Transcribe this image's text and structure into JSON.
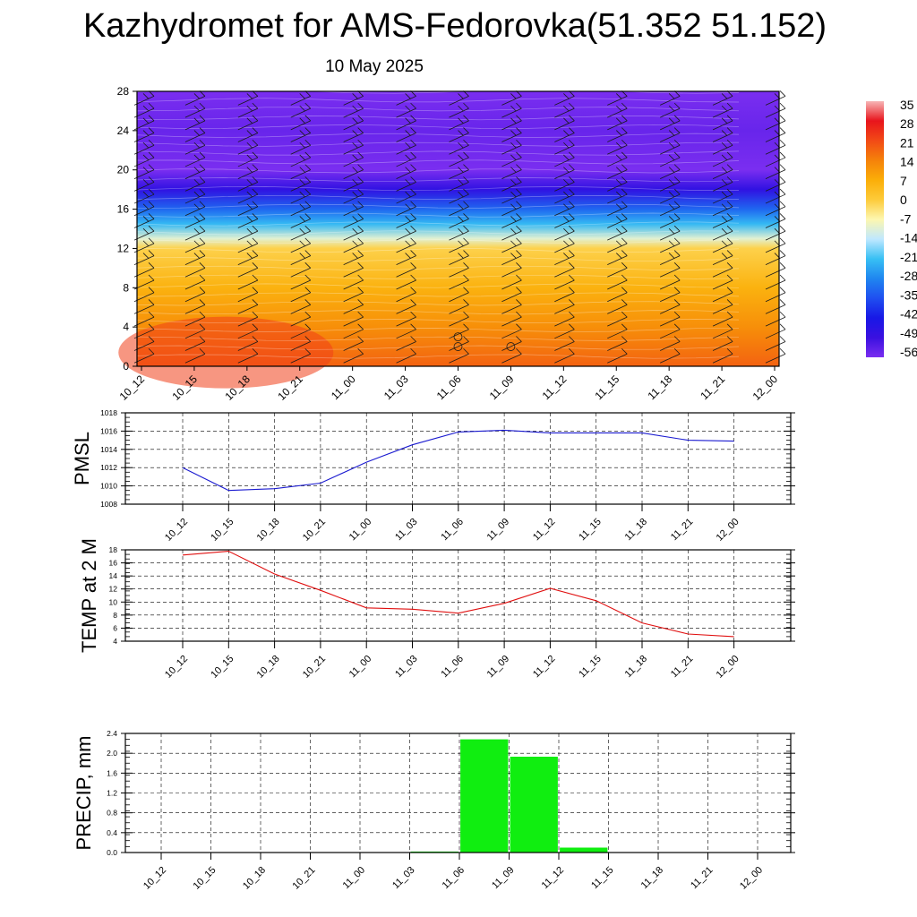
{
  "header": {
    "title": "Kazhydromet for AMS-Fedorovka(51.352 51.152)",
    "subtitle": "10 May 2025"
  },
  "time_labels": [
    "10_12",
    "10_15",
    "10_18",
    "10_21",
    "11_00",
    "11_03",
    "11_06",
    "11_09",
    "11_12",
    "11_15",
    "11_18",
    "11_21",
    "12_00"
  ],
  "chart_data": [
    {
      "type": "heatmap",
      "title": "",
      "xlabel": "",
      "ylabel": "",
      "x": [
        "10_12",
        "10_15",
        "10_18",
        "10_21",
        "11_00",
        "11_03",
        "11_06",
        "11_09",
        "11_12",
        "11_15",
        "11_18",
        "11_21",
        "12_00"
      ],
      "y_ticks": [
        0,
        4,
        8,
        12,
        16,
        20,
        24,
        28
      ],
      "ylim": [
        0,
        28
      ],
      "profile": [
        {
          "y": 0,
          "v": 18
        },
        {
          "y": 4,
          "v": 12
        },
        {
          "y": 8,
          "v": 6
        },
        {
          "y": 12,
          "v": -1
        },
        {
          "y": 13,
          "v": -10
        },
        {
          "y": 14.5,
          "v": -22
        },
        {
          "y": 16,
          "v": -32
        },
        {
          "y": 18,
          "v": -47
        },
        {
          "y": 20,
          "v": -56
        },
        {
          "y": 24,
          "v": -54
        },
        {
          "y": 28,
          "v": -60
        }
      ],
      "colorbar_labels": [
        "35",
        "28",
        "21",
        "14",
        "7",
        "0",
        "-7",
        "-14",
        "-21",
        "-28",
        "-35",
        "-42",
        "-49",
        "-56"
      ],
      "colorbar_stops": [
        "#f7b5b5",
        "#e8141c",
        "#f24a16",
        "#f5820a",
        "#fbae08",
        "#fdcb3a",
        "#fdf7b0",
        "#bfe8ff",
        "#38c0f4",
        "#1f86f0",
        "#1f4ff0",
        "#1818e6",
        "#3a10e0",
        "#7a2ef0"
      ]
    },
    {
      "type": "line",
      "title": "",
      "xlabel": "",
      "ylabel": "PMSL",
      "x": [
        "10_12",
        "10_15",
        "10_18",
        "10_21",
        "11_00",
        "11_03",
        "11_06",
        "11_09",
        "11_12",
        "11_15",
        "11_18",
        "11_21",
        "12_00"
      ],
      "series": [
        {
          "values": [
            1012.0,
            1009.5,
            1009.7,
            1010.3,
            1012.6,
            1014.5,
            1015.9,
            1016.1,
            1015.8,
            1015.8,
            1015.8,
            1015.0,
            1014.9
          ],
          "color": "#1a1ad0"
        }
      ],
      "ylim": [
        1008,
        1018
      ],
      "y_ticks": [
        "1008",
        "1010",
        "1012",
        "1014",
        "1016",
        "1018"
      ],
      "grid": true
    },
    {
      "type": "line",
      "title": "",
      "xlabel": "",
      "ylabel": "TEMP at 2 M",
      "x": [
        "10_12",
        "10_15",
        "10_18",
        "10_21",
        "11_00",
        "11_03",
        "11_06",
        "11_09",
        "11_12",
        "11_15",
        "11_18",
        "11_21",
        "12_00"
      ],
      "series": [
        {
          "values": [
            17.2,
            17.8,
            14.3,
            11.8,
            9.1,
            8.9,
            8.3,
            9.8,
            12.1,
            10.2,
            6.8,
            5.1,
            4.7
          ],
          "color": "#e01010"
        }
      ],
      "ylim": [
        4,
        18
      ],
      "y_ticks": [
        "4",
        "6",
        "8",
        "10",
        "12",
        "14",
        "16",
        "18"
      ],
      "grid": true
    },
    {
      "type": "bar",
      "title": "",
      "xlabel": "",
      "ylabel": "PRECIP, mm",
      "categories": [
        "10_12",
        "10_15",
        "10_18",
        "10_21",
        "11_00",
        "11_03",
        "11_06",
        "11_09",
        "11_12",
        "11_15",
        "11_18",
        "11_21",
        "12_00"
      ],
      "values": [
        0,
        0,
        0,
        0,
        0,
        0.02,
        2.28,
        1.93,
        0.1,
        0,
        0,
        0,
        0
      ],
      "ylim": [
        0,
        2.4
      ],
      "y_ticks": [
        "0.0",
        "0.4",
        "0.8",
        "1.2",
        "1.6",
        "2.0",
        "2.4"
      ],
      "bar_color": "#10ee10",
      "grid": true
    }
  ]
}
